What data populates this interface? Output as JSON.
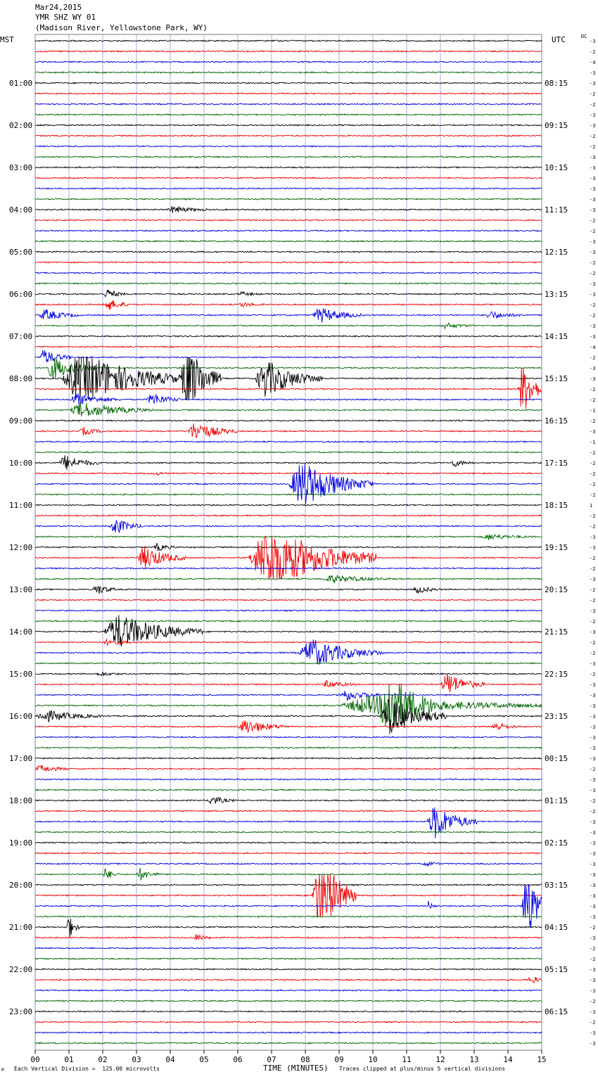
{
  "header": {
    "date": "Mar24,2015",
    "station": "YMR SHZ WY 01",
    "location": "(Madison River, Yellowstone Park, WY)"
  },
  "labels": {
    "left_zone": "MST",
    "right_zone": "UTC",
    "dc": "DC"
  },
  "footer": {
    "scale_note": "Each Vertical Division =  125.00 microvolts",
    "clip_note": "Traces clipped at plus/minus 5 vertical divisions",
    "corner_mark": "M"
  },
  "colors": {
    "line1": "#000000",
    "line2": "#ee0000",
    "line3": "#0000dd",
    "line4": "#006600",
    "grid": "#8a8ac8"
  },
  "chart_data": {
    "type": "helicorder",
    "xlabel": "TIME (MINUTES)",
    "x_ticks": [
      "00",
      "01",
      "02",
      "03",
      "04",
      "05",
      "06",
      "07",
      "08",
      "09",
      "10",
      "11",
      "12",
      "13",
      "14",
      "15"
    ],
    "minutes_per_line": 15,
    "lines_count": 96,
    "left_hour_labels": [
      "01:00",
      "02:00",
      "03:00",
      "04:00",
      "05:00",
      "06:00",
      "07:00",
      "08:00",
      "09:00",
      "10:00",
      "11:00",
      "12:00",
      "13:00",
      "14:00",
      "15:00",
      "16:00",
      "17:00",
      "18:00",
      "19:00",
      "20:00",
      "21:00",
      "22:00",
      "23:00"
    ],
    "right_hour_labels": [
      "08:15",
      "09:15",
      "10:15",
      "11:15",
      "12:15",
      "13:15",
      "14:15",
      "15:15",
      "16:15",
      "17:15",
      "18:15",
      "19:15",
      "20:15",
      "21:15",
      "22:15",
      "23:15",
      "00:15",
      "01:15",
      "02:15",
      "03:15",
      "04:15",
      "05:15",
      "06:15"
    ],
    "dc_offsets": [
      -3,
      -2,
      -4,
      -3,
      -3,
      -2,
      -2,
      -3,
      -3,
      -2,
      -2,
      -3,
      -3,
      -3,
      -3,
      -3,
      -3,
      -2,
      -2,
      -3,
      -3,
      -2,
      -2,
      -3,
      -3,
      -2,
      -2,
      -3,
      -3,
      -4,
      -2,
      -3,
      -3,
      -2,
      -2,
      -1,
      -2,
      -3,
      -1,
      -2,
      -2,
      -2,
      -2,
      -2,
      1,
      -2,
      -2,
      -3,
      -3,
      -2,
      -2,
      -3,
      -2,
      -2,
      -3,
      -2,
      -3,
      -2,
      -2,
      -3,
      -2,
      -3,
      -3,
      -3,
      -3,
      -3,
      -3,
      -3,
      -3,
      -2,
      -3,
      -3,
      -2,
      -2,
      -3,
      -3,
      -3,
      -3,
      -3,
      -3,
      -3,
      -3,
      -3,
      -3,
      -2,
      -3,
      -2,
      -2,
      -3,
      -3,
      -3,
      -2,
      -3,
      -2,
      -3,
      -3
    ],
    "unit": "microvolts",
    "vertical_division": 125.0,
    "clip_divisions": 5,
    "events": [
      {
        "line": 16,
        "minute": 3.9,
        "amp": 0.35,
        "dur": 1.2
      },
      {
        "line": 24,
        "minute": 6.0,
        "amp": 0.2,
        "dur": 0.7
      },
      {
        "line": 24,
        "minute": 2.0,
        "amp": 0.2,
        "dur": 0.7
      },
      {
        "line": 24,
        "minute": 2.0,
        "amp": 0.2,
        "dur": 0.7
      },
      {
        "line": 25,
        "minute": 2.0,
        "amp": 0.3,
        "dur": 0.8
      },
      {
        "line": 25,
        "minute": 6.0,
        "amp": 0.25,
        "dur": 0.8
      },
      {
        "line": 24,
        "minute": 2.1,
        "amp": 0.15,
        "dur": 0.5
      },
      {
        "line": 25,
        "minute": 2.0,
        "amp": 0.35,
        "dur": 0.9
      },
      {
        "line": 26,
        "minute": 0.1,
        "amp": 0.6,
        "dur": 1.2
      },
      {
        "line": 26,
        "minute": 8.2,
        "amp": 0.8,
        "dur": 1.5
      },
      {
        "line": 26,
        "minute": 13.3,
        "amp": 0.4,
        "dur": 1.2
      },
      {
        "line": 27,
        "minute": 12.0,
        "amp": 0.3,
        "dur": 1.0
      },
      {
        "line": 30,
        "minute": 0.1,
        "amp": 0.8,
        "dur": 1.0
      },
      {
        "line": 31,
        "minute": 0.3,
        "amp": 1.2,
        "dur": 1.5
      },
      {
        "line": 32,
        "minute": 0.8,
        "amp": 3.0,
        "dur": 3.5
      },
      {
        "line": 32,
        "minute": 4.3,
        "amp": 4.0,
        "dur": 1.2
      },
      {
        "line": 32,
        "minute": 6.5,
        "amp": 2.0,
        "dur": 2.0
      },
      {
        "line": 33,
        "minute": 14.3,
        "amp": 3.0,
        "dur": 0.8
      },
      {
        "line": 34,
        "minute": 1.0,
        "amp": 0.6,
        "dur": 1.5
      },
      {
        "line": 34,
        "minute": 3.3,
        "amp": 0.7,
        "dur": 1.0
      },
      {
        "line": 35,
        "minute": 1.0,
        "amp": 0.8,
        "dur": 2.5
      },
      {
        "line": 37,
        "minute": 4.5,
        "amp": 1.0,
        "dur": 1.5
      },
      {
        "line": 37,
        "minute": 1.3,
        "amp": 0.4,
        "dur": 0.8
      },
      {
        "line": 40,
        "minute": 0.7,
        "amp": 0.8,
        "dur": 1.2
      },
      {
        "line": 40,
        "minute": 12.3,
        "amp": 0.4,
        "dur": 0.7
      },
      {
        "line": 41,
        "minute": 3.5,
        "amp": 0.2,
        "dur": 0.5
      },
      {
        "line": 42,
        "minute": 7.5,
        "amp": 2.5,
        "dur": 2.5
      },
      {
        "line": 46,
        "minute": 2.2,
        "amp": 0.9,
        "dur": 1.0
      },
      {
        "line": 47,
        "minute": 13.2,
        "amp": 0.3,
        "dur": 1.5
      },
      {
        "line": 48,
        "minute": 3.5,
        "amp": 0.4,
        "dur": 0.7
      },
      {
        "line": 49,
        "minute": 3.0,
        "amp": 1.2,
        "dur": 1.5
      },
      {
        "line": 49,
        "minute": 6.3,
        "amp": 3.5,
        "dur": 3.8
      },
      {
        "line": 51,
        "minute": 8.5,
        "amp": 0.4,
        "dur": 2.0
      },
      {
        "line": 52,
        "minute": 1.7,
        "amp": 0.6,
        "dur": 0.7
      },
      {
        "line": 52,
        "minute": 11.2,
        "amp": 0.4,
        "dur": 0.8
      },
      {
        "line": 56,
        "minute": 2.0,
        "amp": 1.8,
        "dur": 3.0
      },
      {
        "line": 57,
        "minute": 2.0,
        "amp": 0.3,
        "dur": 1.0
      },
      {
        "line": 58,
        "minute": 7.8,
        "amp": 1.5,
        "dur": 2.5
      },
      {
        "line": 60,
        "minute": 1.8,
        "amp": 0.2,
        "dur": 0.8
      },
      {
        "line": 61,
        "minute": 12.0,
        "amp": 1.2,
        "dur": 1.3
      },
      {
        "line": 61,
        "minute": 8.5,
        "amp": 0.4,
        "dur": 1.0
      },
      {
        "line": 62,
        "minute": 9.0,
        "amp": 0.6,
        "dur": 1.2
      },
      {
        "line": 63,
        "minute": 9.0,
        "amp": 1.0,
        "dur": 6.0
      },
      {
        "line": 63,
        "minute": 10.2,
        "amp": 3.0,
        "dur": 1.6
      },
      {
        "line": 64,
        "minute": 10.2,
        "amp": 2.0,
        "dur": 2.0
      },
      {
        "line": 64,
        "minute": 0.0,
        "amp": 0.6,
        "dur": 2.0
      },
      {
        "line": 65,
        "minute": 6.0,
        "amp": 0.8,
        "dur": 1.5
      },
      {
        "line": 65,
        "minute": 13.5,
        "amp": 0.5,
        "dur": 0.8
      },
      {
        "line": 69,
        "minute": 0.0,
        "amp": 0.4,
        "dur": 1.0
      },
      {
        "line": 72,
        "minute": 5.1,
        "amp": 0.5,
        "dur": 0.8
      },
      {
        "line": 74,
        "minute": 11.6,
        "amp": 1.8,
        "dur": 1.5
      },
      {
        "line": 78,
        "minute": 11.5,
        "amp": 0.3,
        "dur": 0.5
      },
      {
        "line": 79,
        "minute": 2.0,
        "amp": 0.6,
        "dur": 0.5
      },
      {
        "line": 79,
        "minute": 3.0,
        "amp": 0.6,
        "dur": 0.7
      },
      {
        "line": 81,
        "minute": 8.2,
        "amp": 5.0,
        "dur": 1.3
      },
      {
        "line": 82,
        "minute": 11.6,
        "amp": 0.5,
        "dur": 0.3
      },
      {
        "line": 82,
        "minute": 14.4,
        "amp": 4.5,
        "dur": 0.8
      },
      {
        "line": 84,
        "minute": 0.9,
        "amp": 1.5,
        "dur": 0.4
      },
      {
        "line": 85,
        "minute": 4.7,
        "amp": 0.4,
        "dur": 0.5
      },
      {
        "line": 89,
        "minute": 14.6,
        "amp": 0.6,
        "dur": 0.4
      }
    ]
  }
}
